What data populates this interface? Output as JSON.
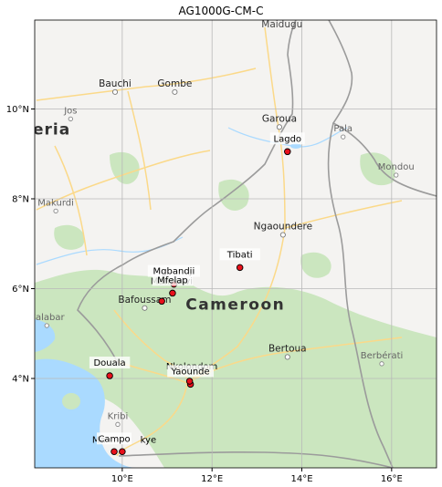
{
  "title": "AG1000G-CM-C",
  "x_ticks": [
    {
      "lon": 10,
      "label": "10°E"
    },
    {
      "lon": 12,
      "label": "12°E"
    },
    {
      "lon": 14,
      "label": "14°E"
    },
    {
      "lon": 16,
      "label": "16°E"
    }
  ],
  "y_ticks": [
    {
      "lat": 4,
      "label": "4°N"
    },
    {
      "lat": 6,
      "label": "6°N"
    },
    {
      "lat": 8,
      "label": "8°N"
    },
    {
      "lat": 10,
      "label": "10°N"
    }
  ],
  "sites": [
    {
      "name": "Lagdo",
      "lon": 13.68,
      "lat": 9.05
    },
    {
      "name": "Tibati",
      "lon": 12.62,
      "lat": 6.47
    },
    {
      "name": "Mgbandji",
      "lon": 11.15,
      "lat": 6.1
    },
    {
      "name": "Mfelap",
      "lon": 11.12,
      "lat": 5.9
    },
    {
      "name": "",
      "lon": 10.88,
      "lat": 5.72
    },
    {
      "name": "Douala",
      "lon": 9.72,
      "lat": 4.06
    },
    {
      "name": "Yaounde",
      "lon": 11.52,
      "lat": 3.87
    },
    {
      "name": "",
      "lon": 11.5,
      "lat": 3.94
    },
    {
      "name": "Campo",
      "lon": 9.82,
      "lat": 2.37
    },
    {
      "name": "",
      "lon": 10.0,
      "lat": 2.37
    }
  ],
  "label_fragments": [
    {
      "text": "Ma",
      "lon": 9.48,
      "lat": 2.57
    },
    {
      "text": "kye",
      "lon": 10.58,
      "lat": 2.57
    },
    {
      "text": "Nkolondom",
      "lon": 11.55,
      "lat": 4.2
    },
    {
      "text": "Manoutvi",
      "lon": 11.1,
      "lat": 6.1
    }
  ],
  "basemap": {
    "country_label": "Cameroon",
    "nigeria_label": "eria",
    "cities": [
      {
        "name": "Garoua",
        "lon": 13.5,
        "lat": 9.72
      },
      {
        "name": "Ngaoundere",
        "lon": 13.58,
        "lat": 7.32
      },
      {
        "name": "Bafoussam",
        "lon": 10.5,
        "lat": 5.69
      },
      {
        "name": "Bertoua",
        "lon": 13.68,
        "lat": 4.6
      },
      {
        "name": "Bauchi",
        "lon": 9.84,
        "lat": 10.5
      },
      {
        "name": "Gombe",
        "lon": 11.17,
        "lat": 10.5
      }
    ],
    "towns": [
      {
        "name": "Jos",
        "lon": 8.85,
        "lat": 9.9
      },
      {
        "name": "Makurdi",
        "lon": 8.52,
        "lat": 7.85
      },
      {
        "name": "Pala",
        "lon": 14.92,
        "lat": 9.5
      },
      {
        "name": "Mondou",
        "lon": 16.1,
        "lat": 8.65
      },
      {
        "name": "Berbérati",
        "lon": 15.78,
        "lat": 4.45
      },
      {
        "name": "Kribi",
        "lon": 9.9,
        "lat": 3.1
      },
      {
        "name": "Calabar",
        "lon": 8.32,
        "lat": 5.3
      }
    ],
    "maiduguri_fragment": "Maidugu",
    "colors": {
      "land": "#f4f3f1",
      "water": "#aadaff",
      "forest": "#cbe6bf",
      "road": "#fbd989",
      "border": "#9b9b9b",
      "grid": "#b8b8b8",
      "marker": "#e8101b"
    }
  }
}
